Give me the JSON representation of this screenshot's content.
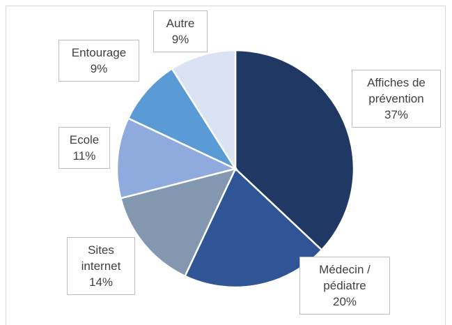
{
  "chart_data": {
    "type": "pie",
    "categories": [
      "Affiches de prévention",
      "Médecin / pédiatre",
      "Sites internet",
      "Ecole",
      "Entourage",
      "Autre"
    ],
    "values": [
      37,
      20,
      14,
      11,
      9,
      9
    ],
    "value_labels": [
      "37%",
      "20%",
      "14%",
      "11%",
      "9%",
      "9%"
    ],
    "colors": [
      "#203864",
      "#2f5597",
      "#8497b0",
      "#8faadc",
      "#5b9bd5",
      "#dae3f3"
    ]
  }
}
